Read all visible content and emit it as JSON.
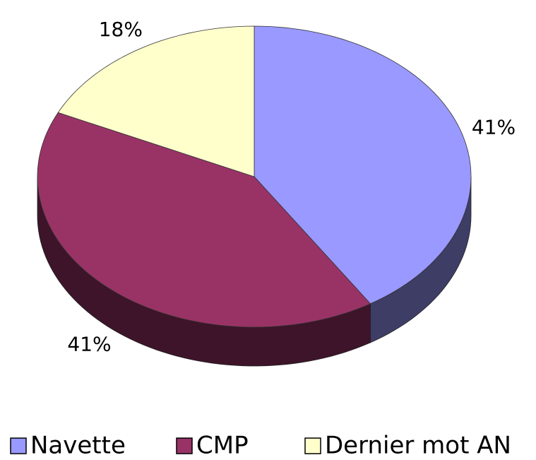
{
  "chart_data": {
    "type": "pie",
    "categories": [
      "Navette",
      "CMP",
      "Dernier mot AN"
    ],
    "values": [
      41,
      41,
      18
    ],
    "value_labels": [
      "41%",
      "41%",
      "18%"
    ],
    "colors": [
      "#9999ff",
      "#993366",
      "#ffffcc"
    ]
  }
}
